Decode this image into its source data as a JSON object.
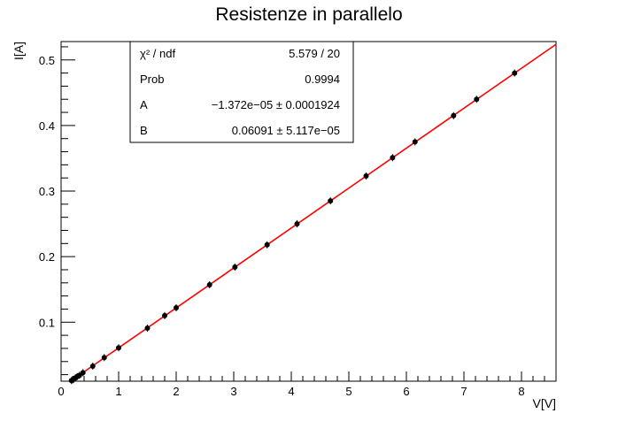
{
  "chart_data": {
    "type": "scatter",
    "title": "Resistenze in parallelo",
    "xlabel": "V[V]",
    "ylabel": "I[A]",
    "xlim": [
      0,
      8.6
    ],
    "ylim": [
      0.01,
      0.528
    ],
    "x_ticks": [
      0,
      1,
      2,
      3,
      4,
      5,
      6,
      7,
      8
    ],
    "y_ticks": [
      0.1,
      0.2,
      0.3,
      0.4,
      0.5
    ],
    "x_tick_labels": [
      "0",
      "1",
      "2",
      "3",
      "4",
      "5",
      "6",
      "7",
      "8"
    ],
    "y_tick_labels": [
      "0.1",
      "0.2",
      "0.3",
      "0.4",
      "0.5"
    ],
    "grid": false,
    "series": [
      {
        "marker_color": "#000000",
        "x": [
          0.18,
          0.2,
          0.22,
          0.25,
          0.28,
          0.32,
          0.38,
          0.55,
          0.75,
          1.0,
          1.5,
          1.8,
          2.0,
          2.58,
          3.02,
          3.58,
          4.1,
          4.68,
          5.3,
          5.76,
          6.15,
          6.82,
          7.22,
          7.88
        ],
        "y": [
          0.011,
          0.012,
          0.013,
          0.015,
          0.017,
          0.019,
          0.023,
          0.033,
          0.046,
          0.061,
          0.091,
          0.11,
          0.122,
          0.157,
          0.184,
          0.218,
          0.25,
          0.285,
          0.323,
          0.351,
          0.375,
          0.415,
          0.44,
          0.48
        ]
      }
    ],
    "fit": {
      "color": "#ff0000",
      "intercept": -1.372e-05,
      "slope": 0.06091
    },
    "stats_box": {
      "rows": [
        {
          "label": "χ² / ndf",
          "value": "5.579 / 20"
        },
        {
          "label": "Prob",
          "value": "0.9994"
        },
        {
          "label": "A",
          "value": "−1.372e−05 ± 0.0001924"
        },
        {
          "label": "B",
          "value": "0.06091 ± 5.117e−05"
        }
      ]
    }
  }
}
